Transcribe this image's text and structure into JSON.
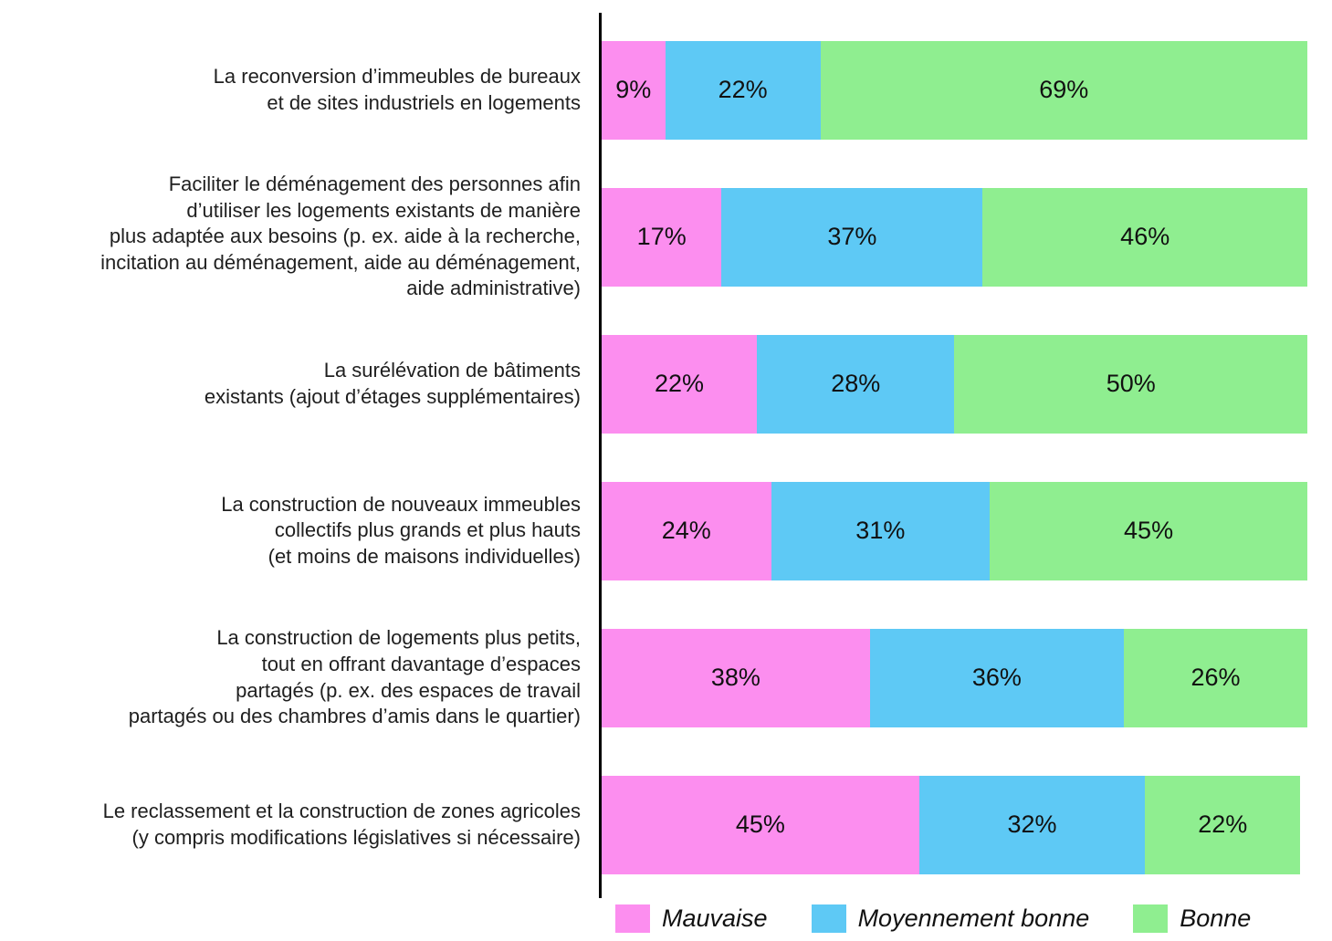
{
  "chart_data": {
    "type": "bar",
    "orientation": "horizontal",
    "stacked": true,
    "unit": "%",
    "value_label_format": "{value}%",
    "legend_position": "bottom",
    "axis_color": "#000000",
    "categories": [
      "La reconversion d’immeubles de bureaux\net de sites industriels en logements",
      "Faciliter le déménagement des personnes afin\nd’utiliser les logements existants de manière\nplus adaptée aux besoins (p. ex. aide à la recherche,\nincitation au déménagement, aide au déménagement,\naide administrative)",
      "La surélévation de bâtiments\nexistants (ajout d’étages supplémentaires)",
      "La construction de nouveaux immeubles\ncollectifs plus grands et plus hauts\n(et moins de maisons individuelles)",
      "La construction de logements plus petits,\ntout en offrant davantage d’espaces\npartagés (p. ex. des espaces de travail\npartagés ou des chambres d’amis dans le quartier)",
      "Le reclassement et la construction de zones agricoles\n(y compris modifications législatives si nécessaire)"
    ],
    "series": [
      {
        "name": "Mauvaise",
        "color": "#FC8EEF",
        "values": [
          9,
          17,
          22,
          24,
          38,
          45
        ]
      },
      {
        "name": "Moyennement bonne",
        "color": "#5EC9F5",
        "values": [
          22,
          37,
          28,
          31,
          36,
          32
        ]
      },
      {
        "name": "Bonne",
        "color": "#8FEE90",
        "values": [
          69,
          46,
          50,
          45,
          26,
          22
        ]
      }
    ]
  }
}
